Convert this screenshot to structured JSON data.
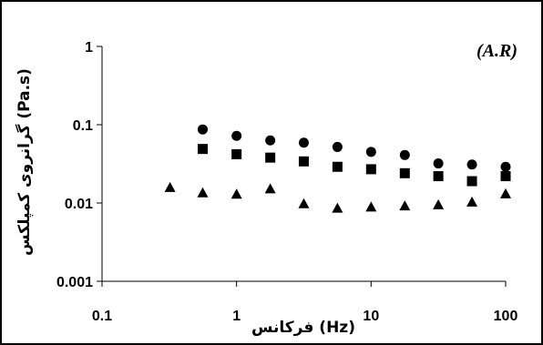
{
  "chart_data": {
    "type": "scatter",
    "annotation": "(A.R)",
    "xlabel": "فرکانس (Hz)",
    "ylabel": "ﮔﺮاﻧﺮوی ﻛﻤﭙﻠﻜﺲ (Pa.s)",
    "x_scale": "log",
    "y_scale": "log",
    "xlim": [
      0.1,
      100
    ],
    "ylim": [
      0.001,
      1
    ],
    "x_ticks": [
      "0.1",
      "1",
      "10",
      "100"
    ],
    "y_ticks": [
      "0.001",
      "0.01",
      "0.1",
      "1"
    ],
    "grid": false,
    "series": [
      {
        "marker": "circle",
        "color": "#000000",
        "x": [
          0.56,
          1.0,
          1.78,
          3.16,
          5.62,
          10.0,
          17.8,
          31.6,
          56.2,
          100
        ],
        "y": [
          0.087,
          0.072,
          0.063,
          0.059,
          0.052,
          0.045,
          0.041,
          0.032,
          0.031,
          0.029
        ]
      },
      {
        "marker": "square",
        "color": "#000000",
        "x": [
          0.56,
          1.0,
          1.78,
          3.16,
          5.62,
          10.0,
          17.8,
          31.6,
          56.2,
          100
        ],
        "y": [
          0.049,
          0.042,
          0.038,
          0.034,
          0.029,
          0.027,
          0.024,
          0.022,
          0.019,
          0.022
        ]
      },
      {
        "marker": "triangle",
        "color": "#000000",
        "x": [
          0.32,
          0.56,
          1.0,
          1.78,
          3.16,
          5.62,
          10.0,
          17.8,
          31.6,
          56.2,
          100
        ],
        "y": [
          0.0158,
          0.0135,
          0.013,
          0.0152,
          0.0098,
          0.0086,
          0.0089,
          0.0092,
          0.0095,
          0.0103,
          0.0131
        ]
      }
    ]
  }
}
